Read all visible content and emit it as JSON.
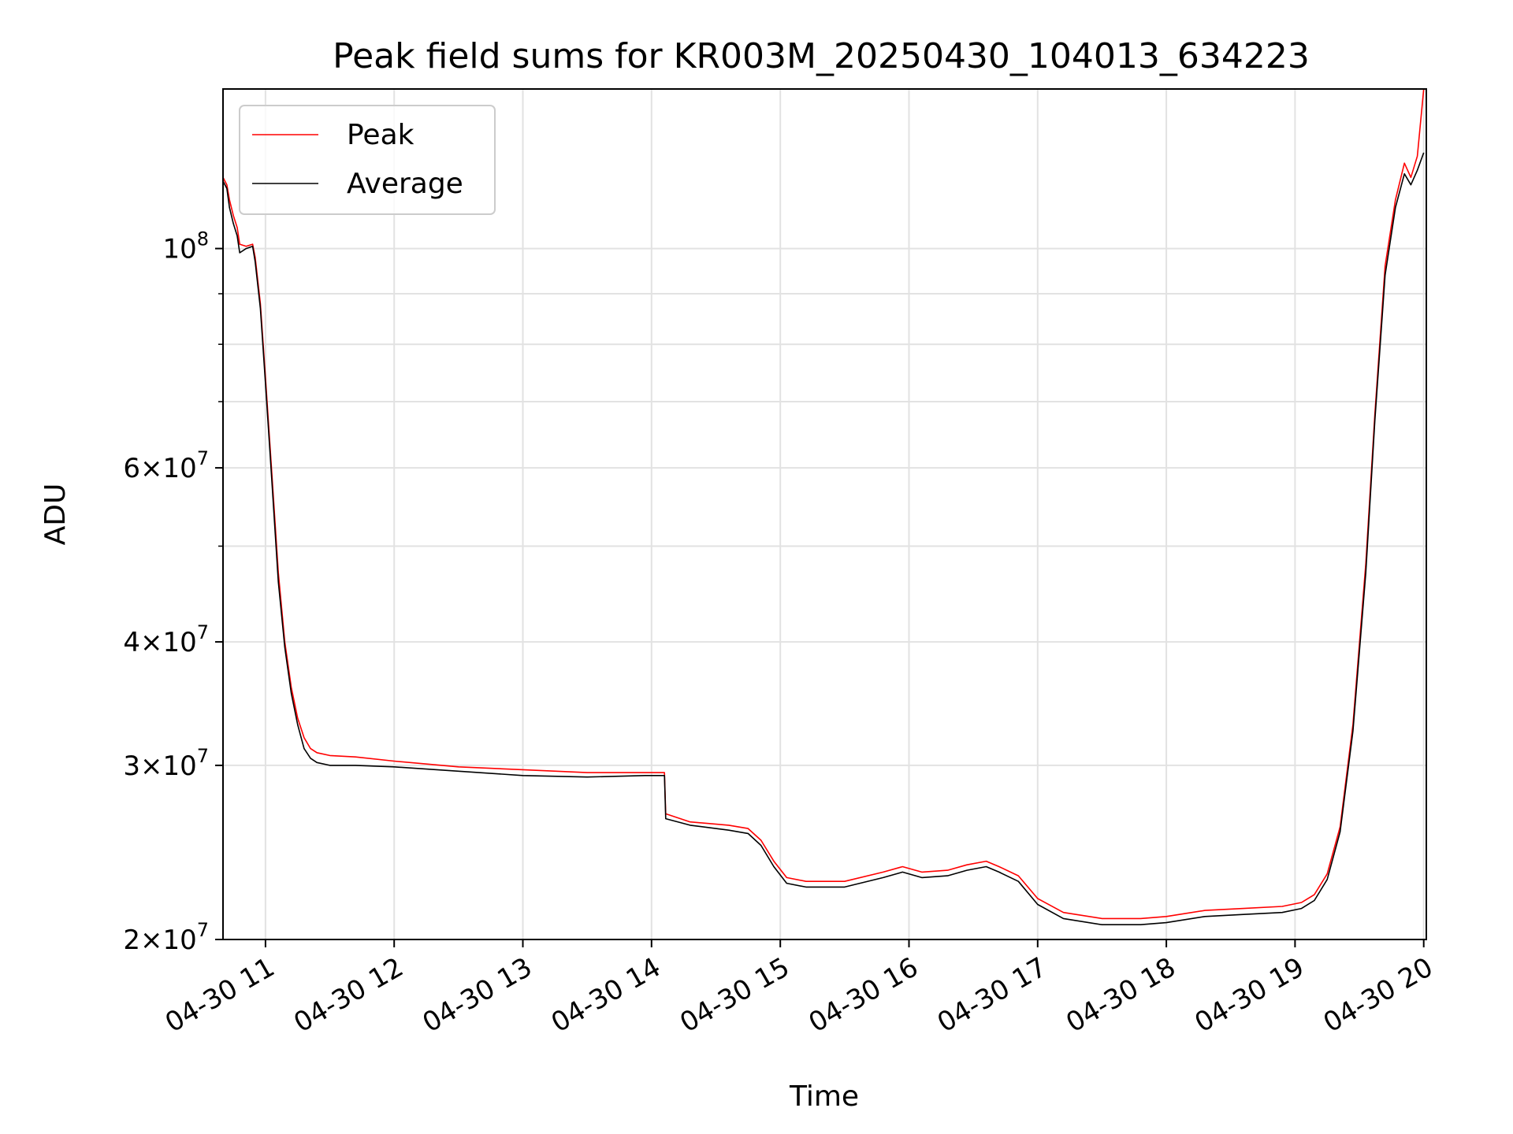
{
  "chart_data": {
    "type": "line",
    "title": "Peak field sums for KR003M_20250430_104013_634223",
    "xlabel": "Time",
    "ylabel": "ADU",
    "x_unit": "hour of 2025-04-30",
    "xlim": [
      10.67,
      20.02
    ],
    "ylim": [
      20000000,
      145000000
    ],
    "yscale": "log",
    "grid": true,
    "legend_position": "upper left",
    "x_ticks": [
      {
        "value": 11,
        "label": "04-30 11"
      },
      {
        "value": 12,
        "label": "04-30 12"
      },
      {
        "value": 13,
        "label": "04-30 13"
      },
      {
        "value": 14,
        "label": "04-30 14"
      },
      {
        "value": 15,
        "label": "04-30 15"
      },
      {
        "value": 16,
        "label": "04-30 16"
      },
      {
        "value": 17,
        "label": "04-30 17"
      },
      {
        "value": 18,
        "label": "04-30 18"
      },
      {
        "value": 19,
        "label": "04-30 19"
      },
      {
        "value": 20,
        "label": "04-30 20"
      }
    ],
    "y_ticks_major": [
      {
        "value": 100000000,
        "base": "10",
        "exp": "8"
      },
      {
        "value": 60000000,
        "mant": "6",
        "base": "10",
        "exp": "7"
      },
      {
        "value": 40000000,
        "mant": "4",
        "base": "10",
        "exp": "7"
      },
      {
        "value": 30000000,
        "mant": "3",
        "base": "10",
        "exp": "7"
      },
      {
        "value": 20000000,
        "mant": "2",
        "base": "10",
        "exp": "7"
      }
    ],
    "y_ticks_minor": [
      50000000,
      70000000,
      80000000,
      90000000
    ],
    "series": [
      {
        "name": "Peak",
        "color": "#ff0000",
        "points": [
          [
            10.67,
            118000000
          ],
          [
            10.7,
            116000000
          ],
          [
            10.72,
            112000000
          ],
          [
            10.75,
            108000000
          ],
          [
            10.78,
            105000000
          ],
          [
            10.8,
            101000000
          ],
          [
            10.85,
            100500000
          ],
          [
            10.9,
            101000000
          ],
          [
            10.92,
            98000000
          ],
          [
            10.96,
            88000000
          ],
          [
            11.0,
            74000000
          ],
          [
            11.05,
            59000000
          ],
          [
            11.1,
            47000000
          ],
          [
            11.15,
            40000000
          ],
          [
            11.2,
            36000000
          ],
          [
            11.25,
            33500000
          ],
          [
            11.3,
            32000000
          ],
          [
            11.35,
            31200000
          ],
          [
            11.4,
            30900000
          ],
          [
            11.5,
            30700000
          ],
          [
            11.7,
            30600000
          ],
          [
            12.0,
            30300000
          ],
          [
            12.5,
            29900000
          ],
          [
            13.0,
            29700000
          ],
          [
            13.5,
            29500000
          ],
          [
            13.95,
            29500000
          ],
          [
            14.1,
            29500000
          ],
          [
            14.11,
            26800000
          ],
          [
            14.3,
            26300000
          ],
          [
            14.6,
            26100000
          ],
          [
            14.75,
            25900000
          ],
          [
            14.85,
            25200000
          ],
          [
            14.95,
            24000000
          ],
          [
            15.05,
            23100000
          ],
          [
            15.2,
            22900000
          ],
          [
            15.5,
            22900000
          ],
          [
            15.8,
            23400000
          ],
          [
            15.95,
            23700000
          ],
          [
            16.1,
            23400000
          ],
          [
            16.3,
            23500000
          ],
          [
            16.45,
            23800000
          ],
          [
            16.6,
            24000000
          ],
          [
            16.7,
            23700000
          ],
          [
            16.85,
            23200000
          ],
          [
            17.0,
            22000000
          ],
          [
            17.2,
            21300000
          ],
          [
            17.5,
            21000000
          ],
          [
            17.8,
            21000000
          ],
          [
            18.0,
            21100000
          ],
          [
            18.3,
            21400000
          ],
          [
            18.6,
            21500000
          ],
          [
            18.9,
            21600000
          ],
          [
            19.05,
            21800000
          ],
          [
            19.15,
            22200000
          ],
          [
            19.25,
            23300000
          ],
          [
            19.35,
            26000000
          ],
          [
            19.45,
            33000000
          ],
          [
            19.55,
            48000000
          ],
          [
            19.62,
            68000000
          ],
          [
            19.7,
            96000000
          ],
          [
            19.78,
            112000000
          ],
          [
            19.85,
            122000000
          ],
          [
            19.9,
            118000000
          ],
          [
            19.95,
            124000000
          ],
          [
            20.0,
            145000000
          ]
        ]
      },
      {
        "name": "Average",
        "color": "#000000",
        "points": [
          [
            10.67,
            117000000
          ],
          [
            10.7,
            115000000
          ],
          [
            10.72,
            110000000
          ],
          [
            10.75,
            106000000
          ],
          [
            10.78,
            103000000
          ],
          [
            10.8,
            99000000
          ],
          [
            10.85,
            100000000
          ],
          [
            10.9,
            100500000
          ],
          [
            10.92,
            97000000
          ],
          [
            10.96,
            87000000
          ],
          [
            11.0,
            73000000
          ],
          [
            11.05,
            58000000
          ],
          [
            11.1,
            46000000
          ],
          [
            11.15,
            39500000
          ],
          [
            11.2,
            35500000
          ],
          [
            11.25,
            33000000
          ],
          [
            11.3,
            31200000
          ],
          [
            11.35,
            30500000
          ],
          [
            11.4,
            30200000
          ],
          [
            11.5,
            30000000
          ],
          [
            11.7,
            30000000
          ],
          [
            12.0,
            29900000
          ],
          [
            12.5,
            29600000
          ],
          [
            13.0,
            29300000
          ],
          [
            13.5,
            29200000
          ],
          [
            13.95,
            29300000
          ],
          [
            14.1,
            29300000
          ],
          [
            14.11,
            26500000
          ],
          [
            14.3,
            26100000
          ],
          [
            14.6,
            25800000
          ],
          [
            14.75,
            25600000
          ],
          [
            14.85,
            24900000
          ],
          [
            14.95,
            23700000
          ],
          [
            15.05,
            22800000
          ],
          [
            15.2,
            22600000
          ],
          [
            15.5,
            22600000
          ],
          [
            15.8,
            23100000
          ],
          [
            15.95,
            23400000
          ],
          [
            16.1,
            23100000
          ],
          [
            16.3,
            23200000
          ],
          [
            16.45,
            23500000
          ],
          [
            16.6,
            23700000
          ],
          [
            16.7,
            23400000
          ],
          [
            16.85,
            22900000
          ],
          [
            17.0,
            21700000
          ],
          [
            17.2,
            21000000
          ],
          [
            17.5,
            20700000
          ],
          [
            17.8,
            20700000
          ],
          [
            18.0,
            20800000
          ],
          [
            18.3,
            21100000
          ],
          [
            18.6,
            21200000
          ],
          [
            18.9,
            21300000
          ],
          [
            19.05,
            21500000
          ],
          [
            19.15,
            21900000
          ],
          [
            19.25,
            23000000
          ],
          [
            19.35,
            25700000
          ],
          [
            19.45,
            32500000
          ],
          [
            19.55,
            47000000
          ],
          [
            19.62,
            67000000
          ],
          [
            19.7,
            94000000
          ],
          [
            19.78,
            110000000
          ],
          [
            19.85,
            119000000
          ],
          [
            19.9,
            116000000
          ],
          [
            19.95,
            120000000
          ],
          [
            20.0,
            125000000
          ]
        ]
      }
    ]
  }
}
